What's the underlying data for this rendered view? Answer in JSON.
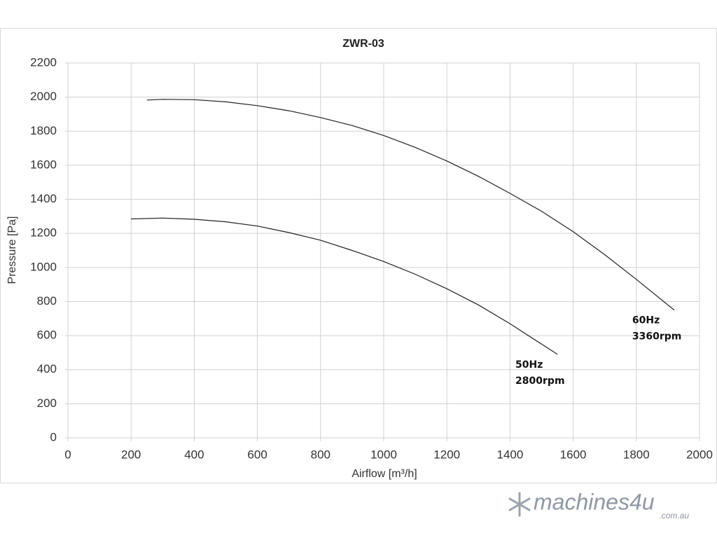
{
  "chart_data": {
    "type": "line",
    "title": "ZWR-03",
    "x_label": "Airflow [m³/h]",
    "y_label": "Pressure [Pa]",
    "series": [
      {
        "color": "#222222",
        "annotation": [
          "60Hz",
          "3360rpm"
        ],
        "x": [
          250,
          300,
          400,
          500,
          600,
          700,
          800,
          900,
          1000,
          1100,
          1200,
          1300,
          1400,
          1500,
          1600,
          1700,
          1800,
          1920
        ],
        "values": [
          1983,
          1987,
          1985,
          1972,
          1950,
          1920,
          1880,
          1833,
          1775,
          1705,
          1625,
          1535,
          1435,
          1330,
          1210,
          1075,
          930,
          750
        ]
      },
      {
        "color": "#222222",
        "annotation": [
          "50Hz",
          "2800rpm"
        ],
        "x": [
          200,
          300,
          400,
          500,
          600,
          700,
          800,
          900,
          1000,
          1100,
          1200,
          1300,
          1400,
          1500,
          1550
        ],
        "values": [
          1285,
          1290,
          1283,
          1268,
          1243,
          1205,
          1160,
          1100,
          1035,
          960,
          875,
          780,
          670,
          550,
          490
        ]
      }
    ],
    "xlim": [
      0,
      2000
    ],
    "xticks": [
      0,
      200,
      400,
      600,
      800,
      1000,
      1200,
      1400,
      1600,
      1800,
      2000
    ],
    "ylim": [
      0,
      2200
    ],
    "yticks": [
      0,
      200,
      400,
      600,
      800,
      1000,
      1200,
      1400,
      1600,
      1800,
      2000,
      2200
    ],
    "grid": true
  },
  "watermark": {
    "brand": "machines4u",
    "domain": ".com.au"
  }
}
